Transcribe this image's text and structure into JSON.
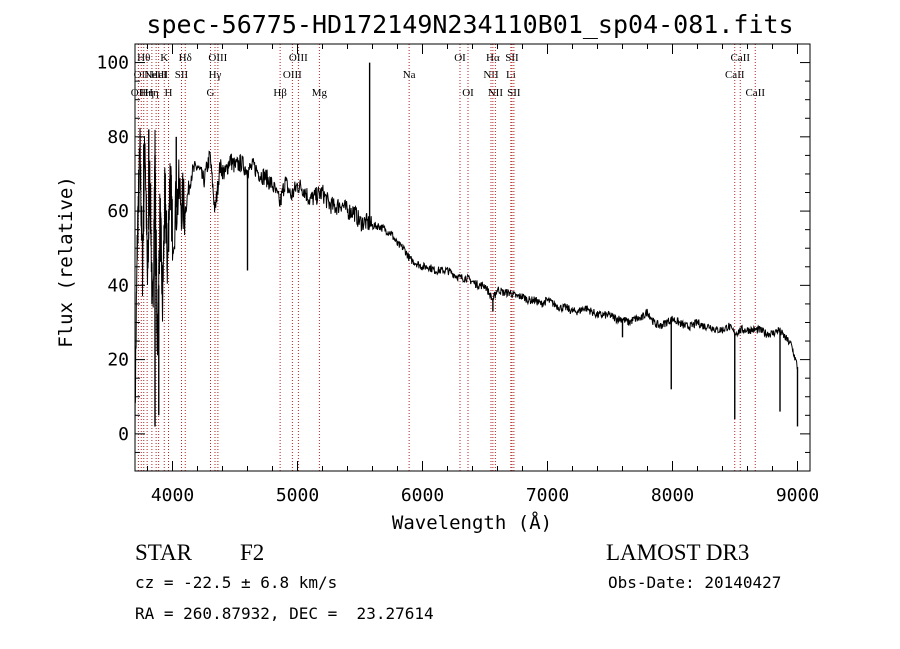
{
  "chart_data": {
    "type": "line",
    "title": "spec-56775-HD172149N234110B01_sp04-081.fits",
    "xlabel": "Wavelength (Å)",
    "ylabel": "Flux (relative)",
    "xlim": [
      3700,
      9100
    ],
    "ylim": [
      -10,
      105
    ],
    "xticks": [
      4000,
      5000,
      6000,
      7000,
      8000,
      9000
    ],
    "yticks": [
      0,
      20,
      40,
      60,
      80,
      100
    ],
    "grid": false,
    "series": [
      {
        "name": "flux",
        "x": [
          3700,
          3720,
          3740,
          3760,
          3780,
          3800,
          3820,
          3840,
          3860,
          3880,
          3900,
          3920,
          3940,
          3960,
          3980,
          4000,
          4050,
          4100,
          4150,
          4200,
          4250,
          4300,
          4340,
          4380,
          4420,
          4460,
          4500,
          4550,
          4600,
          4650,
          4700,
          4750,
          4800,
          4861,
          4900,
          4950,
          5000,
          5050,
          5100,
          5150,
          5200,
          5250,
          5300,
          5350,
          5400,
          5450,
          5500,
          5550,
          5600,
          5650,
          5700,
          5750,
          5800,
          5850,
          5900,
          5950,
          6000,
          6050,
          6100,
          6150,
          6200,
          6250,
          6300,
          6350,
          6400,
          6450,
          6500,
          6563,
          6600,
          6650,
          6700,
          6750,
          6800,
          6850,
          6900,
          6950,
          7000,
          7050,
          7100,
          7150,
          7200,
          7250,
          7300,
          7350,
          7400,
          7450,
          7500,
          7550,
          7600,
          7650,
          7700,
          7750,
          7800,
          7850,
          7900,
          7950,
          8000,
          8050,
          8100,
          8150,
          8200,
          8250,
          8300,
          8350,
          8400,
          8450,
          8500,
          8550,
          8600,
          8650,
          8700,
          8750,
          8800,
          8850,
          8900,
          8950,
          9000
        ],
        "y": [
          5,
          55,
          75,
          45,
          80,
          40,
          70,
          30,
          75,
          20,
          60,
          35,
          65,
          45,
          70,
          55,
          65,
          60,
          70,
          72,
          68,
          75,
          60,
          72,
          70,
          74,
          72,
          73,
          71,
          72,
          70,
          69,
          67,
          62,
          68,
          64,
          67,
          66,
          63,
          64,
          65,
          62,
          61,
          62,
          60,
          60,
          57,
          57,
          56,
          56,
          55,
          54,
          51,
          50,
          47,
          46,
          45,
          45,
          44,
          44,
          44,
          43,
          42,
          42,
          41,
          40,
          40,
          36,
          39,
          38,
          38,
          37,
          37,
          36,
          36,
          35,
          36,
          35,
          34,
          34,
          33,
          33,
          34,
          33,
          32,
          32,
          32,
          31,
          31,
          30,
          31,
          31,
          33,
          30,
          29,
          30,
          31,
          30,
          29,
          29,
          30,
          29,
          29,
          28,
          28,
          29,
          27,
          28,
          28,
          28,
          28,
          27,
          27,
          28,
          26,
          24,
          18
        ]
      }
    ],
    "features": [
      {
        "x": 5577,
        "top": 100
      },
      {
        "x": 3770,
        "top": 78
      },
      {
        "x": 3810,
        "top": 82
      },
      {
        "x": 4030,
        "top": 80
      }
    ],
    "absorption": [
      {
        "x": 3860,
        "bottom": 2
      },
      {
        "x": 3890,
        "bottom": 5
      },
      {
        "x": 4600,
        "bottom": 44
      },
      {
        "x": 6563,
        "bottom": 33
      },
      {
        "x": 7600,
        "bottom": 26
      },
      {
        "x": 7990,
        "bottom": 12
      },
      {
        "x": 8498,
        "bottom": 4
      },
      {
        "x": 8860,
        "bottom": 6
      },
      {
        "x": 9000,
        "bottom": 2
      }
    ],
    "line_markers": [
      {
        "x": 3727,
        "label": "OII",
        "row": 3
      },
      {
        "x": 3750,
        "label": "OII",
        "row": 2
      },
      {
        "x": 3770,
        "label": "Hθ",
        "row": 1
      },
      {
        "x": 3797,
        "label": "Hη",
        "row": 3
      },
      {
        "x": 3835,
        "label": "Hη",
        "row": 3
      },
      {
        "x": 3869,
        "label": "NeIII",
        "row": 2
      },
      {
        "x": 3889,
        "label": "HeI",
        "row": 2
      },
      {
        "x": 3934,
        "label": "K",
        "row": 1
      },
      {
        "x": 3968,
        "label": "H",
        "row": 3
      },
      {
        "x": 4072,
        "label": "SII",
        "row": 2
      },
      {
        "x": 4102,
        "label": "Hδ",
        "row": 1
      },
      {
        "x": 4304,
        "label": "G",
        "row": 3
      },
      {
        "x": 4340,
        "label": "Hγ",
        "row": 2
      },
      {
        "x": 4363,
        "label": "OIII",
        "row": 1
      },
      {
        "x": 4861,
        "label": "Hβ",
        "row": 3
      },
      {
        "x": 4959,
        "label": "OIII",
        "row": 2
      },
      {
        "x": 5007,
        "label": "OIII",
        "row": 1
      },
      {
        "x": 5175,
        "label": "Mg",
        "row": 3
      },
      {
        "x": 5893,
        "label": "Na",
        "row": 2
      },
      {
        "x": 6300,
        "label": "OI",
        "row": 1
      },
      {
        "x": 6364,
        "label": "OI",
        "row": 3
      },
      {
        "x": 6548,
        "label": "NII",
        "row": 2
      },
      {
        "x": 6563,
        "label": "Hα",
        "row": 1
      },
      {
        "x": 6583,
        "label": "NII",
        "row": 3
      },
      {
        "x": 6707,
        "label": "Li",
        "row": 2
      },
      {
        "x": 6716,
        "label": "SII",
        "row": 1
      },
      {
        "x": 6731,
        "label": "SII",
        "row": 3
      },
      {
        "x": 8498,
        "label": "CaII",
        "row": 2
      },
      {
        "x": 8542,
        "label": "CaII",
        "row": 1
      },
      {
        "x": 8662,
        "label": "CaII",
        "row": 3
      }
    ],
    "colors": {
      "spectrum": "#000000",
      "markers": "#b22222",
      "axes": "#000000"
    }
  },
  "info": {
    "object_class": "STAR",
    "subclass": "F2",
    "survey": "LAMOST DR3",
    "cz": "cz = -22.5 ± 6.8 km/s",
    "obs_date": "Obs-Date: 20140427",
    "coords": "RA = 260.87932, DEC =  23.27614"
  }
}
